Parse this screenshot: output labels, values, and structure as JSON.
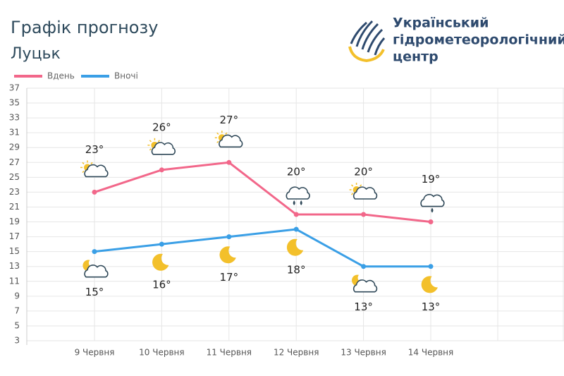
{
  "chart_data": {
    "type": "line",
    "title": "Графік прогнозу",
    "subtitle": "Луцьк",
    "categories": [
      "9 Червня",
      "10 Червня",
      "11 Червня",
      "12 Червня",
      "13 Червня",
      "14 Червня"
    ],
    "series": [
      {
        "name": "Вдень",
        "color": "#f2678a",
        "values": [
          23,
          26,
          27,
          20,
          20,
          19
        ],
        "value_labels": [
          "23°",
          "26°",
          "27°",
          "20°",
          "20°",
          "19°"
        ]
      },
      {
        "name": "Вночі",
        "color": "#3a9fe6",
        "values": [
          15,
          16,
          17,
          18,
          13,
          13
        ],
        "value_labels": [
          "15°",
          "16°",
          "17°",
          "18°",
          "13°",
          "13°"
        ]
      }
    ],
    "ylim": [
      3,
      37
    ],
    "yticks": [
      3,
      5,
      7,
      9,
      11,
      13,
      15,
      17,
      19,
      21,
      23,
      25,
      27,
      29,
      31,
      33,
      35,
      37
    ],
    "grid": true,
    "legend": "top-left"
  },
  "logo_text": [
    "Український",
    "гідрометеорологічний",
    "центр"
  ]
}
